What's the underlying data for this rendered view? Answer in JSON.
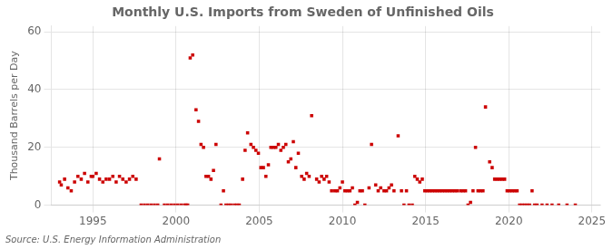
{
  "chart_data": {
    "type": "scatter",
    "title": "Monthly U.S. Imports from Sweden of Unfinished Oils",
    "ylabel": "Thousand Barrels per Day",
    "source": "Source: U.S. Energy Information Administration",
    "color": "#cc0000",
    "marker": "square",
    "grid": true,
    "xlim": [
      1992.5,
      2025.5
    ],
    "ylim": [
      0,
      62
    ],
    "xticks": [
      1995,
      2000,
      2005,
      2010,
      2015,
      2020,
      2025
    ],
    "yticks": [
      0,
      20,
      40,
      60
    ],
    "x": [
      1993.0,
      1993.1,
      1993.3,
      1993.5,
      1993.7,
      1993.9,
      1994.1,
      1994.3,
      1994.5,
      1994.7,
      1994.9,
      1995.0,
      1995.2,
      1995.4,
      1995.6,
      1995.8,
      1996.0,
      1996.2,
      1996.4,
      1996.6,
      1996.8,
      1997.0,
      1997.2,
      1997.4,
      1997.6,
      1997.9,
      1998.1,
      1998.3,
      1998.5,
      1998.7,
      1998.9,
      1999.0,
      1999.3,
      1999.5,
      1999.7,
      1999.9,
      2000.1,
      2000.3,
      2000.5,
      2000.6,
      2000.7,
      2000.85,
      2001.0,
      2001.2,
      2001.35,
      2001.5,
      2001.65,
      2001.8,
      2001.95,
      2002.1,
      2002.25,
      2002.4,
      2002.7,
      2002.85,
      2003.0,
      2003.15,
      2003.3,
      2003.5,
      2003.65,
      2003.8,
      2004.0,
      2004.15,
      2004.3,
      2004.5,
      2004.65,
      2004.8,
      2004.95,
      2005.1,
      2005.25,
      2005.4,
      2005.55,
      2005.7,
      2005.85,
      2006.0,
      2006.15,
      2006.3,
      2006.45,
      2006.6,
      2006.75,
      2006.9,
      2007.05,
      2007.2,
      2007.35,
      2007.55,
      2007.7,
      2007.85,
      2008.0,
      2008.15,
      2008.45,
      2008.6,
      2008.75,
      2008.9,
      2009.05,
      2009.2,
      2009.35,
      2009.55,
      2009.7,
      2009.85,
      2010.0,
      2010.15,
      2010.3,
      2010.45,
      2010.6,
      2010.75,
      2010.9,
      2011.05,
      2011.2,
      2011.35,
      2011.6,
      2011.75,
      2012.0,
      2012.15,
      2012.3,
      2012.5,
      2012.65,
      2012.8,
      2012.95,
      2013.1,
      2013.35,
      2013.55,
      2013.7,
      2013.85,
      2014.0,
      2014.2,
      2014.35,
      2014.5,
      2014.65,
      2014.8,
      2014.95,
      2015.1,
      2015.25,
      2015.4,
      2015.55,
      2015.7,
      2015.85,
      2016.0,
      2016.15,
      2016.3,
      2016.45,
      2016.6,
      2016.75,
      2016.9,
      2017.1,
      2017.25,
      2017.4,
      2017.55,
      2017.7,
      2017.85,
      2018.0,
      2018.15,
      2018.3,
      2018.45,
      2018.6,
      2018.85,
      2019.0,
      2019.15,
      2019.3,
      2019.45,
      2019.6,
      2019.75,
      2019.9,
      2020.05,
      2020.2,
      2020.35,
      2020.5,
      2020.65,
      2020.8,
      2020.95,
      2021.1,
      2021.25,
      2021.4,
      2021.55,
      2021.7,
      2022.0,
      2022.3,
      2022.6,
      2023.0,
      2023.5,
      2024.0
    ],
    "values": [
      8,
      7,
      9,
      6,
      5,
      8,
      10,
      9,
      11,
      8,
      10,
      10,
      11,
      9,
      8,
      9,
      9,
      10,
      8,
      10,
      9,
      8,
      9,
      10,
      9,
      0,
      0,
      0,
      0,
      0,
      0,
      16,
      0,
      0,
      0,
      0,
      0,
      0,
      0,
      0,
      0,
      51,
      52,
      33,
      29,
      21,
      20,
      10,
      10,
      9,
      12,
      21,
      0,
      5,
      0,
      0,
      0,
      0,
      0,
      0,
      9,
      19,
      25,
      21,
      20,
      19,
      18,
      13,
      13,
      10,
      14,
      20,
      20,
      20,
      21,
      19,
      20,
      21,
      15,
      16,
      22,
      13,
      18,
      10,
      9,
      11,
      10,
      31,
      9,
      8,
      10,
      9,
      10,
      8,
      5,
      5,
      5,
      6,
      8,
      5,
      5,
      5,
      6,
      0,
      1,
      5,
      5,
      0,
      6,
      21,
      7,
      5,
      6,
      5,
      5,
      6,
      7,
      5,
      24,
      5,
      0,
      5,
      0,
      0,
      10,
      9,
      8,
      9,
      5,
      5,
      5,
      5,
      5,
      5,
      5,
      5,
      5,
      5,
      5,
      5,
      5,
      5,
      5,
      5,
      5,
      0,
      1,
      5,
      20,
      5,
      5,
      5,
      34,
      15,
      13,
      9,
      9,
      9,
      9,
      9,
      5,
      5,
      5,
      5,
      5,
      0,
      0,
      0,
      0,
      0,
      5,
      0,
      0,
      0,
      0,
      0,
      0,
      0,
      0
    ]
  }
}
